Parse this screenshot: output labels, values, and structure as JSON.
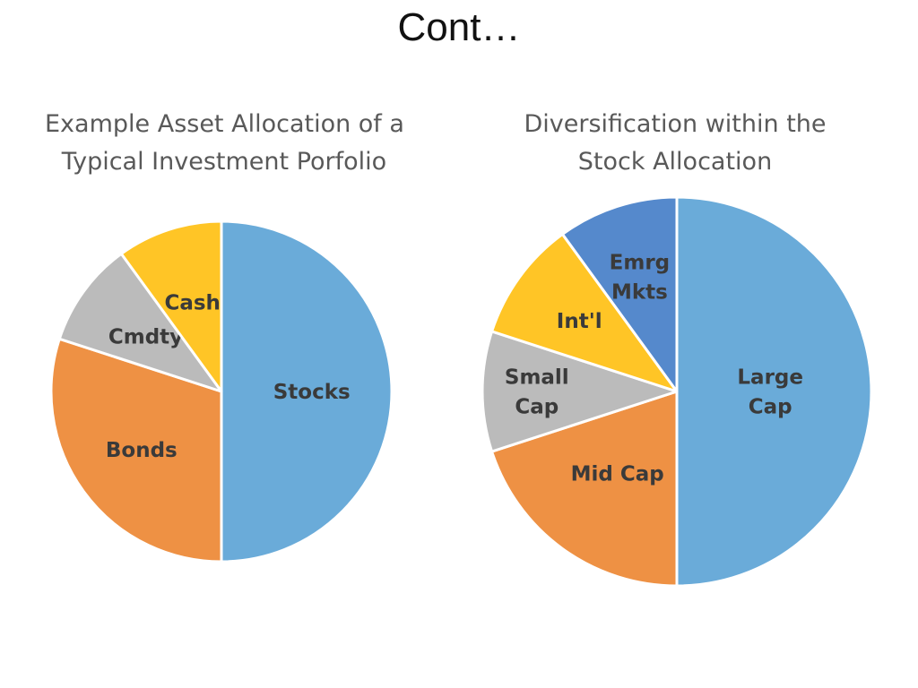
{
  "slide": {
    "title": "Cont…"
  },
  "chart_data": [
    {
      "type": "pie",
      "title_lines": [
        "Example Asset Allocation of a",
        "Typical Investment Porfolio"
      ],
      "slices": [
        {
          "label": [
            "Stocks"
          ],
          "value": 50,
          "color": "#6AABD9"
        },
        {
          "label": [
            "Bonds"
          ],
          "value": 30,
          "color": "#EE9144"
        },
        {
          "label": [
            "Cmdty"
          ],
          "value": 10,
          "color": "#BBBBBB"
        },
        {
          "label": [
            "Cash"
          ],
          "value": 10,
          "color": "#FFC526"
        }
      ]
    },
    {
      "type": "pie",
      "title_lines": [
        "Diversification within the",
        "Stock Allocation"
      ],
      "slices": [
        {
          "label": [
            "Large",
            "Cap"
          ],
          "value": 50,
          "color": "#6AABD9"
        },
        {
          "label": [
            "Mid Cap"
          ],
          "value": 20,
          "color": "#EE9144"
        },
        {
          "label": [
            "Small",
            "Cap"
          ],
          "value": 10,
          "color": "#BBBBBB"
        },
        {
          "label": [
            "Int'l"
          ],
          "value": 10,
          "color": "#FFC526"
        },
        {
          "label": [
            "Emrg",
            "Mkts"
          ],
          "value": 10,
          "color": "#5589CC"
        }
      ]
    }
  ]
}
